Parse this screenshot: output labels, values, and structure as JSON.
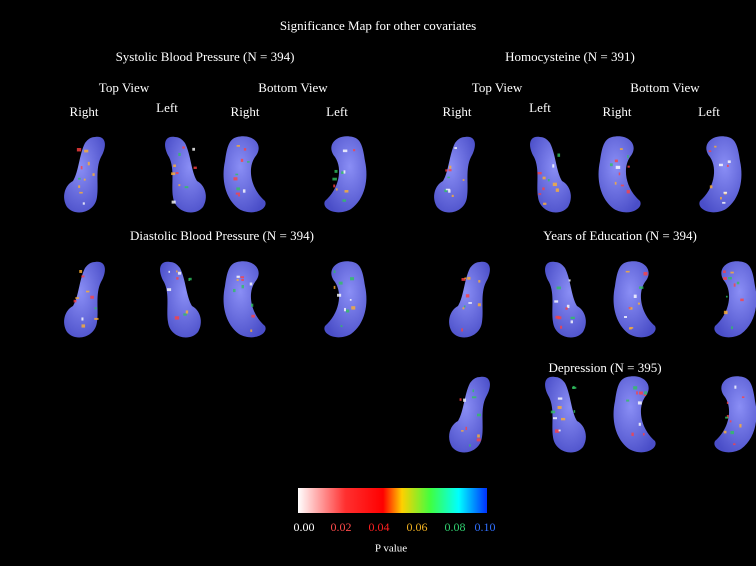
{
  "title": "Significance Map for other covariates",
  "panels": [
    {
      "title": "Systolic Blood Pressure (N = 394)",
      "views": [
        {
          "label": "Top View",
          "sides": [
            "Right",
            "Left"
          ]
        },
        {
          "label": "Bottom View",
          "sides": [
            "Right",
            "Left"
          ]
        }
      ]
    },
    {
      "title": "Homocysteine (N = 391)",
      "views": [
        {
          "label": "Top View",
          "sides": [
            "Right",
            "Left"
          ]
        },
        {
          "label": "Bottom View",
          "sides": [
            "Right",
            "Left"
          ]
        }
      ]
    },
    {
      "title": "Diastolic Blood Pressure (N = 394)"
    },
    {
      "title": "Years of Education (N = 394)"
    },
    {
      "title": "Depression (N = 395)"
    }
  ],
  "colorbar": {
    "ticks": [
      {
        "label": "0.00",
        "color": "#ffffff"
      },
      {
        "label": "0.02",
        "color": "#ff4a4a"
      },
      {
        "label": "0.04",
        "color": "#ff2020"
      },
      {
        "label": "0.06",
        "color": "#f0b020"
      },
      {
        "label": "0.08",
        "color": "#30d070"
      },
      {
        "label": "0.10",
        "color": "#3070ff"
      }
    ],
    "label": "P value"
  }
}
